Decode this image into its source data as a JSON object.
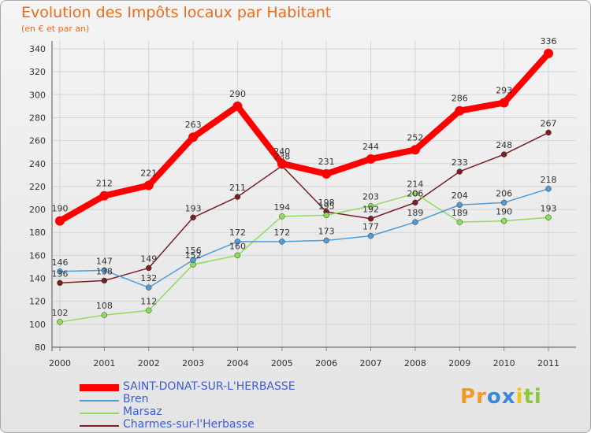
{
  "chart_data": {
    "type": "line",
    "title": "Evolution des Impôts locaux par Habitant",
    "subtitle": "(en € et par an)",
    "x": [
      "2000",
      "2001",
      "2002",
      "2003",
      "2004",
      "2005",
      "2006",
      "2007",
      "2008",
      "2009",
      "2010",
      "2011"
    ],
    "ylim": [
      80,
      340
    ],
    "yticks": [
      80,
      100,
      120,
      140,
      160,
      180,
      200,
      220,
      240,
      260,
      280,
      300,
      320,
      340
    ],
    "grid": true,
    "legend_position": "bottom-left",
    "series": [
      {
        "name": "SAINT-DONAT-SUR-L'HERBASSE",
        "color": "#ff0000",
        "values": [
          190,
          212,
          221,
          263,
          290,
          240,
          231,
          244,
          252,
          286,
          293,
          336
        ]
      },
      {
        "name": "Bren",
        "color": "#4f9cd6",
        "values": [
          146,
          147,
          132,
          156,
          172,
          172,
          173,
          177,
          189,
          204,
          206,
          218
        ]
      },
      {
        "name": "Marsaz",
        "color": "#8fdc5a",
        "values": [
          102,
          108,
          112,
          152,
          160,
          194,
          195,
          203,
          214,
          189,
          190,
          193
        ]
      },
      {
        "name": "Charmes-sur-l'Herbasse",
        "color": "#7a1f24",
        "values": [
          136,
          138,
          149,
          193,
          211,
          238,
          198,
          192,
          206,
          233,
          248,
          267
        ]
      }
    ]
  },
  "logo": {
    "letters": [
      "P",
      "r",
      "o",
      "x",
      "i",
      "t",
      "i"
    ],
    "colors": [
      "#f19a2a",
      "#f19a2a",
      "#3c88d8",
      "#3c88d8",
      "#f1c40f",
      "#8cc63f",
      "#8cc63f"
    ]
  }
}
